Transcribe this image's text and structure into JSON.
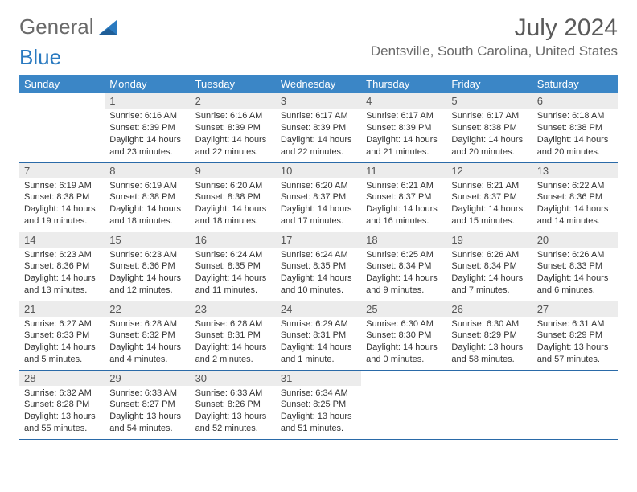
{
  "logo": {
    "word1": "General",
    "word2": "Blue"
  },
  "title": "July 2024",
  "location": "Dentsville, South Carolina, United States",
  "colors": {
    "header_bg": "#3b86c6",
    "header_text": "#ffffff",
    "daynum_bg": "#ececec",
    "row_divider": "#2a6aa8",
    "logo_gray": "#6a6a6a",
    "logo_blue": "#2a7ac0"
  },
  "day_names": [
    "Sunday",
    "Monday",
    "Tuesday",
    "Wednesday",
    "Thursday",
    "Friday",
    "Saturday"
  ],
  "weeks": [
    [
      {
        "n": "",
        "sunrise": "",
        "sunset": "",
        "daylight": "",
        "empty": true
      },
      {
        "n": "1",
        "sunrise": "Sunrise: 6:16 AM",
        "sunset": "Sunset: 8:39 PM",
        "daylight": "Daylight: 14 hours and 23 minutes."
      },
      {
        "n": "2",
        "sunrise": "Sunrise: 6:16 AM",
        "sunset": "Sunset: 8:39 PM",
        "daylight": "Daylight: 14 hours and 22 minutes."
      },
      {
        "n": "3",
        "sunrise": "Sunrise: 6:17 AM",
        "sunset": "Sunset: 8:39 PM",
        "daylight": "Daylight: 14 hours and 22 minutes."
      },
      {
        "n": "4",
        "sunrise": "Sunrise: 6:17 AM",
        "sunset": "Sunset: 8:39 PM",
        "daylight": "Daylight: 14 hours and 21 minutes."
      },
      {
        "n": "5",
        "sunrise": "Sunrise: 6:17 AM",
        "sunset": "Sunset: 8:38 PM",
        "daylight": "Daylight: 14 hours and 20 minutes."
      },
      {
        "n": "6",
        "sunrise": "Sunrise: 6:18 AM",
        "sunset": "Sunset: 8:38 PM",
        "daylight": "Daylight: 14 hours and 20 minutes."
      }
    ],
    [
      {
        "n": "7",
        "sunrise": "Sunrise: 6:19 AM",
        "sunset": "Sunset: 8:38 PM",
        "daylight": "Daylight: 14 hours and 19 minutes."
      },
      {
        "n": "8",
        "sunrise": "Sunrise: 6:19 AM",
        "sunset": "Sunset: 8:38 PM",
        "daylight": "Daylight: 14 hours and 18 minutes."
      },
      {
        "n": "9",
        "sunrise": "Sunrise: 6:20 AM",
        "sunset": "Sunset: 8:38 PM",
        "daylight": "Daylight: 14 hours and 18 minutes."
      },
      {
        "n": "10",
        "sunrise": "Sunrise: 6:20 AM",
        "sunset": "Sunset: 8:37 PM",
        "daylight": "Daylight: 14 hours and 17 minutes."
      },
      {
        "n": "11",
        "sunrise": "Sunrise: 6:21 AM",
        "sunset": "Sunset: 8:37 PM",
        "daylight": "Daylight: 14 hours and 16 minutes."
      },
      {
        "n": "12",
        "sunrise": "Sunrise: 6:21 AM",
        "sunset": "Sunset: 8:37 PM",
        "daylight": "Daylight: 14 hours and 15 minutes."
      },
      {
        "n": "13",
        "sunrise": "Sunrise: 6:22 AM",
        "sunset": "Sunset: 8:36 PM",
        "daylight": "Daylight: 14 hours and 14 minutes."
      }
    ],
    [
      {
        "n": "14",
        "sunrise": "Sunrise: 6:23 AM",
        "sunset": "Sunset: 8:36 PM",
        "daylight": "Daylight: 14 hours and 13 minutes."
      },
      {
        "n": "15",
        "sunrise": "Sunrise: 6:23 AM",
        "sunset": "Sunset: 8:36 PM",
        "daylight": "Daylight: 14 hours and 12 minutes."
      },
      {
        "n": "16",
        "sunrise": "Sunrise: 6:24 AM",
        "sunset": "Sunset: 8:35 PM",
        "daylight": "Daylight: 14 hours and 11 minutes."
      },
      {
        "n": "17",
        "sunrise": "Sunrise: 6:24 AM",
        "sunset": "Sunset: 8:35 PM",
        "daylight": "Daylight: 14 hours and 10 minutes."
      },
      {
        "n": "18",
        "sunrise": "Sunrise: 6:25 AM",
        "sunset": "Sunset: 8:34 PM",
        "daylight": "Daylight: 14 hours and 9 minutes."
      },
      {
        "n": "19",
        "sunrise": "Sunrise: 6:26 AM",
        "sunset": "Sunset: 8:34 PM",
        "daylight": "Daylight: 14 hours and 7 minutes."
      },
      {
        "n": "20",
        "sunrise": "Sunrise: 6:26 AM",
        "sunset": "Sunset: 8:33 PM",
        "daylight": "Daylight: 14 hours and 6 minutes."
      }
    ],
    [
      {
        "n": "21",
        "sunrise": "Sunrise: 6:27 AM",
        "sunset": "Sunset: 8:33 PM",
        "daylight": "Daylight: 14 hours and 5 minutes."
      },
      {
        "n": "22",
        "sunrise": "Sunrise: 6:28 AM",
        "sunset": "Sunset: 8:32 PM",
        "daylight": "Daylight: 14 hours and 4 minutes."
      },
      {
        "n": "23",
        "sunrise": "Sunrise: 6:28 AM",
        "sunset": "Sunset: 8:31 PM",
        "daylight": "Daylight: 14 hours and 2 minutes."
      },
      {
        "n": "24",
        "sunrise": "Sunrise: 6:29 AM",
        "sunset": "Sunset: 8:31 PM",
        "daylight": "Daylight: 14 hours and 1 minute."
      },
      {
        "n": "25",
        "sunrise": "Sunrise: 6:30 AM",
        "sunset": "Sunset: 8:30 PM",
        "daylight": "Daylight: 14 hours and 0 minutes."
      },
      {
        "n": "26",
        "sunrise": "Sunrise: 6:30 AM",
        "sunset": "Sunset: 8:29 PM",
        "daylight": "Daylight: 13 hours and 58 minutes."
      },
      {
        "n": "27",
        "sunrise": "Sunrise: 6:31 AM",
        "sunset": "Sunset: 8:29 PM",
        "daylight": "Daylight: 13 hours and 57 minutes."
      }
    ],
    [
      {
        "n": "28",
        "sunrise": "Sunrise: 6:32 AM",
        "sunset": "Sunset: 8:28 PM",
        "daylight": "Daylight: 13 hours and 55 minutes."
      },
      {
        "n": "29",
        "sunrise": "Sunrise: 6:33 AM",
        "sunset": "Sunset: 8:27 PM",
        "daylight": "Daylight: 13 hours and 54 minutes."
      },
      {
        "n": "30",
        "sunrise": "Sunrise: 6:33 AM",
        "sunset": "Sunset: 8:26 PM",
        "daylight": "Daylight: 13 hours and 52 minutes."
      },
      {
        "n": "31",
        "sunrise": "Sunrise: 6:34 AM",
        "sunset": "Sunset: 8:25 PM",
        "daylight": "Daylight: 13 hours and 51 minutes."
      },
      {
        "n": "",
        "sunrise": "",
        "sunset": "",
        "daylight": "",
        "empty": true
      },
      {
        "n": "",
        "sunrise": "",
        "sunset": "",
        "daylight": "",
        "empty": true
      },
      {
        "n": "",
        "sunrise": "",
        "sunset": "",
        "daylight": "",
        "empty": true
      }
    ]
  ]
}
